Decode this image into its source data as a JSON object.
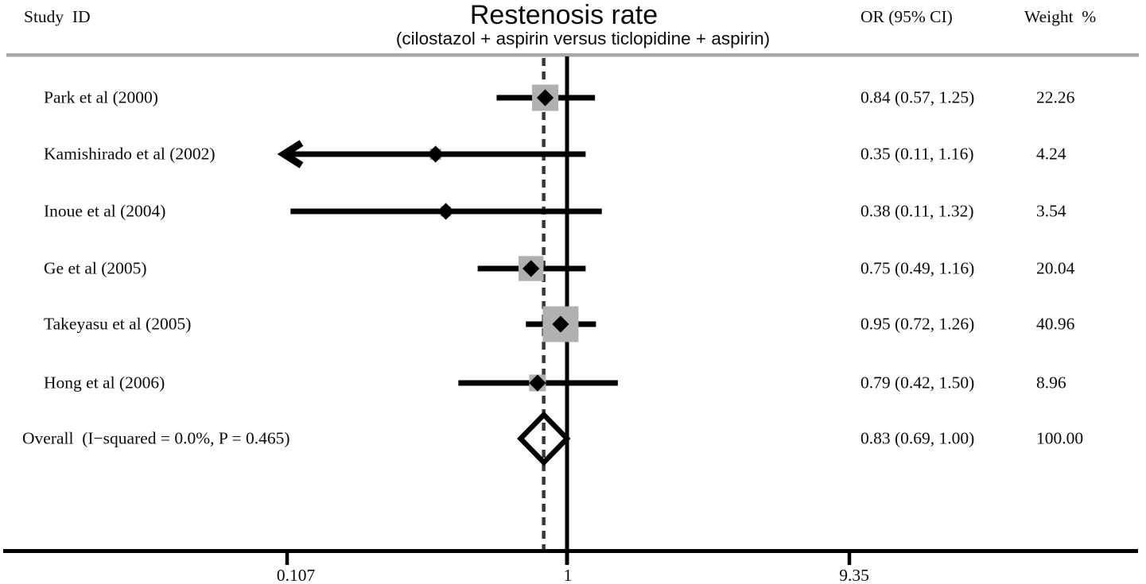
{
  "header": {
    "study_id": "Study  ID",
    "title": "Restenosis rate",
    "subtitle": "(cilostazol + aspirin versus ticlopidine + aspirin)",
    "or_col": "OR (95% CI)",
    "weight_col": "Weight  %"
  },
  "colors": {
    "square": "#b0b0b0",
    "line": "#000000",
    "dashed_line": "#383838",
    "separator": "#a8a8a8",
    "text": "#0a0a0a"
  },
  "chart_data": {
    "type": "forest",
    "title": "Restenosis rate",
    "subtitle": "(cilostazol + aspirin versus ticlopidine + aspirin)",
    "columns": [
      "Study  ID",
      "OR (95% CI)",
      "Weight  %"
    ],
    "xscale": "log",
    "xlim": [
      0.107,
      9.35
    ],
    "null_line": 1,
    "overall_dashed_line": 0.83,
    "x_ticks": [
      0.107,
      1,
      9.35
    ],
    "x_tick_labels": [
      "0.107",
      "1",
      "9.35"
    ],
    "studies": [
      {
        "label": "Park et al (2000)",
        "or": 0.84,
        "ci_low": 0.57,
        "ci_high": 1.25,
        "or_text": "0.84 (0.57, 1.25)",
        "weight": 22.26,
        "weight_text": "22.26",
        "arrow_left": false
      },
      {
        "label": "Kamishirado et al (2002)",
        "or": 0.35,
        "ci_low": 0.11,
        "ci_high": 1.16,
        "or_text": "0.35 (0.11, 1.16)",
        "weight": 4.24,
        "weight_text": "4.24",
        "arrow_left": true
      },
      {
        "label": "Inoue et al (2004)",
        "or": 0.38,
        "ci_low": 0.11,
        "ci_high": 1.32,
        "or_text": "0.38 (0.11, 1.32)",
        "weight": 3.54,
        "weight_text": "3.54",
        "arrow_left": false
      },
      {
        "label": "Ge et al (2005)",
        "or": 0.75,
        "ci_low": 0.49,
        "ci_high": 1.16,
        "or_text": "0.75 (0.49, 1.16)",
        "weight": 20.04,
        "weight_text": "20.04",
        "arrow_left": false
      },
      {
        "label": "Takeyasu et al (2005)",
        "or": 0.95,
        "ci_low": 0.72,
        "ci_high": 1.26,
        "or_text": "0.95 (0.72, 1.26)",
        "weight": 40.96,
        "weight_text": "40.96",
        "arrow_left": false
      },
      {
        "label": "Hong et al (2006)",
        "or": 0.79,
        "ci_low": 0.42,
        "ci_high": 1.5,
        "or_text": "0.79 (0.42, 1.50)",
        "weight": 8.96,
        "weight_text": "8.96",
        "arrow_left": false
      }
    ],
    "overall": {
      "label": "Overall  (I−squared = 0.0%, P = 0.465)",
      "or": 0.83,
      "ci_low": 0.69,
      "ci_high": 1.0,
      "or_text": "0.83 (0.69, 1.00)",
      "weight_text": "100.00"
    }
  }
}
